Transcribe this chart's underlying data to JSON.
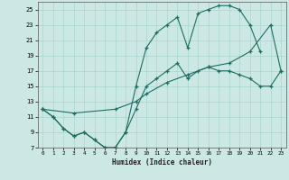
{
  "xlabel": "Humidex (Indice chaleur)",
  "bg_color": "#cce8e5",
  "grid_color": "#aad4d0",
  "line_color": "#1a6e62",
  "line1_x": [
    0,
    1,
    2,
    3,
    4,
    5,
    6,
    7,
    8,
    9,
    10,
    11,
    12,
    13,
    14,
    15,
    16,
    17,
    18,
    19,
    20,
    21
  ],
  "line1_y": [
    12,
    11,
    9.5,
    8.5,
    9,
    8,
    7,
    7,
    9,
    15,
    20,
    22,
    23,
    24,
    20,
    24.5,
    25,
    25.5,
    25.5,
    25,
    23,
    19.5
  ],
  "line2_x": [
    0,
    1,
    2,
    3,
    4,
    5,
    6,
    7,
    8,
    9,
    10,
    11,
    12,
    13,
    14,
    15,
    16,
    17,
    18,
    19,
    20,
    21,
    22,
    23
  ],
  "line2_y": [
    12,
    11,
    9.5,
    8.5,
    9,
    8,
    7,
    7,
    9,
    12,
    15,
    16,
    17,
    18,
    16,
    17,
    17.5,
    17,
    17,
    16.5,
    16,
    15,
    15,
    17
  ],
  "line3_x": [
    0,
    3,
    7,
    9,
    10,
    12,
    14,
    16,
    18,
    20,
    22,
    23
  ],
  "line3_y": [
    12,
    11.5,
    12,
    13,
    14,
    15.5,
    16.5,
    17.5,
    18,
    19.5,
    23,
    17
  ],
  "ylim": [
    7,
    26
  ],
  "xlim": [
    -0.5,
    23.5
  ],
  "yticks": [
    7,
    9,
    11,
    13,
    15,
    17,
    19,
    21,
    23,
    25
  ],
  "xticks": [
    0,
    1,
    2,
    3,
    4,
    5,
    6,
    7,
    8,
    9,
    10,
    11,
    12,
    13,
    14,
    15,
    16,
    17,
    18,
    19,
    20,
    21,
    22,
    23
  ]
}
